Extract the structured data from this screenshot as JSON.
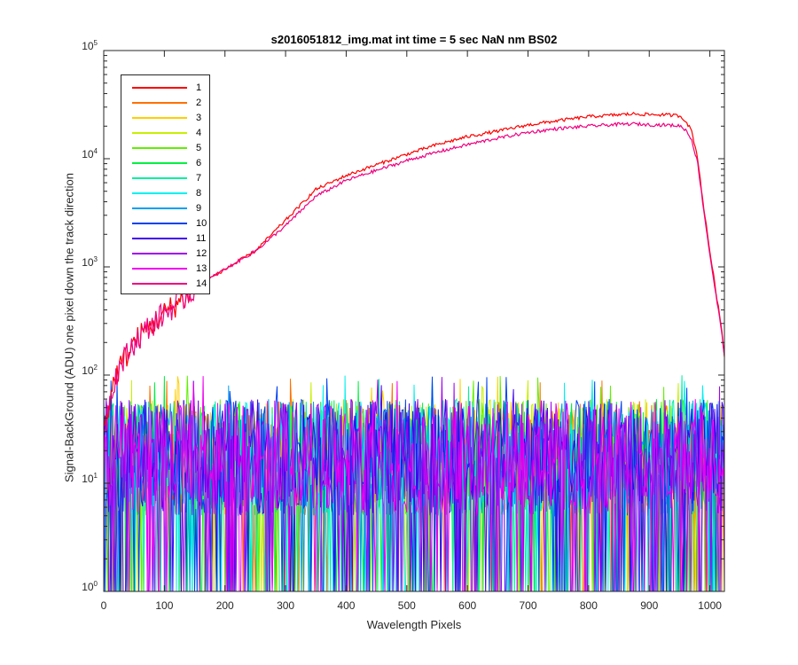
{
  "chart_data": {
    "type": "line",
    "title": "s2016051812_img.mat int time = 5 sec  NaN nm BS02",
    "xlabel": "Wavelength Pixels",
    "ylabel": "Signal-BackGround (ADU) one pixel down the track direction",
    "xlim": [
      0,
      1024
    ],
    "ylim": [
      1,
      100000
    ],
    "yscale": "log",
    "grid": false,
    "legend_position": "top-left",
    "x_ticks": [
      "0",
      "100",
      "200",
      "300",
      "400",
      "500",
      "600",
      "700",
      "800",
      "900",
      "1000"
    ],
    "y_ticks": [
      {
        "base": "10",
        "exp": "0"
      },
      {
        "base": "10",
        "exp": "1"
      },
      {
        "base": "10",
        "exp": "2"
      },
      {
        "base": "10",
        "exp": "3"
      },
      {
        "base": "10",
        "exp": "4"
      },
      {
        "base": "10",
        "exp": "5"
      }
    ],
    "series": [
      {
        "name": "1",
        "color": "#ff0000",
        "kind": "signal",
        "x": [
          0,
          10,
          20,
          30,
          40,
          50,
          75,
          100,
          125,
          150,
          175,
          200,
          250,
          300,
          350,
          400,
          450,
          500,
          550,
          600,
          650,
          700,
          750,
          800,
          850,
          875,
          900,
          925,
          950,
          960,
          970,
          980,
          990,
          1000,
          1010,
          1020,
          1024
        ],
        "y": [
          30,
          60,
          100,
          130,
          160,
          200,
          280,
          370,
          480,
          620,
          780,
          950,
          1400,
          2700,
          5200,
          7000,
          8800,
          11000,
          13500,
          16000,
          18000,
          20500,
          22500,
          24500,
          25500,
          26000,
          25600,
          25500,
          25000,
          22500,
          18000,
          10000,
          3500,
          1400,
          600,
          250,
          150
        ]
      },
      {
        "name": "2",
        "color": "#ff7000",
        "kind": "noise"
      },
      {
        "name": "3",
        "color": "#ffcf00",
        "kind": "noise"
      },
      {
        "name": "4",
        "color": "#c8f000",
        "kind": "noise"
      },
      {
        "name": "5",
        "color": "#60f000",
        "kind": "noise"
      },
      {
        "name": "6",
        "color": "#00f040",
        "kind": "noise"
      },
      {
        "name": "7",
        "color": "#00f0a0",
        "kind": "noise"
      },
      {
        "name": "8",
        "color": "#00f0f0",
        "kind": "noise"
      },
      {
        "name": "9",
        "color": "#00a0f0",
        "kind": "noise"
      },
      {
        "name": "10",
        "color": "#0040f0",
        "kind": "noise"
      },
      {
        "name": "11",
        "color": "#4000f0",
        "kind": "noise"
      },
      {
        "name": "12",
        "color": "#a000f0",
        "kind": "noise"
      },
      {
        "name": "13",
        "color": "#f000f0",
        "kind": "noise"
      },
      {
        "name": "14",
        "color": "#f00080",
        "kind": "signal",
        "x": [
          0,
          10,
          20,
          30,
          40,
          50,
          75,
          100,
          125,
          150,
          175,
          200,
          250,
          300,
          350,
          400,
          450,
          500,
          550,
          600,
          650,
          700,
          750,
          800,
          850,
          875,
          900,
          925,
          950,
          960,
          970,
          980,
          990,
          1000,
          1010,
          1020,
          1024
        ],
        "y": [
          30,
          60,
          100,
          130,
          160,
          200,
          280,
          370,
          480,
          620,
          780,
          950,
          1400,
          2400,
          4500,
          6300,
          7800,
          9600,
          11500,
          13500,
          15500,
          17500,
          19000,
          20000,
          20800,
          21000,
          20600,
          20500,
          20200,
          18500,
          15000,
          9000,
          3300,
          1300,
          550,
          240,
          150
        ]
      }
    ],
    "noise_band": {
      "typical": [
        5,
        60
      ],
      "floor": 1,
      "peak": 100
    }
  }
}
